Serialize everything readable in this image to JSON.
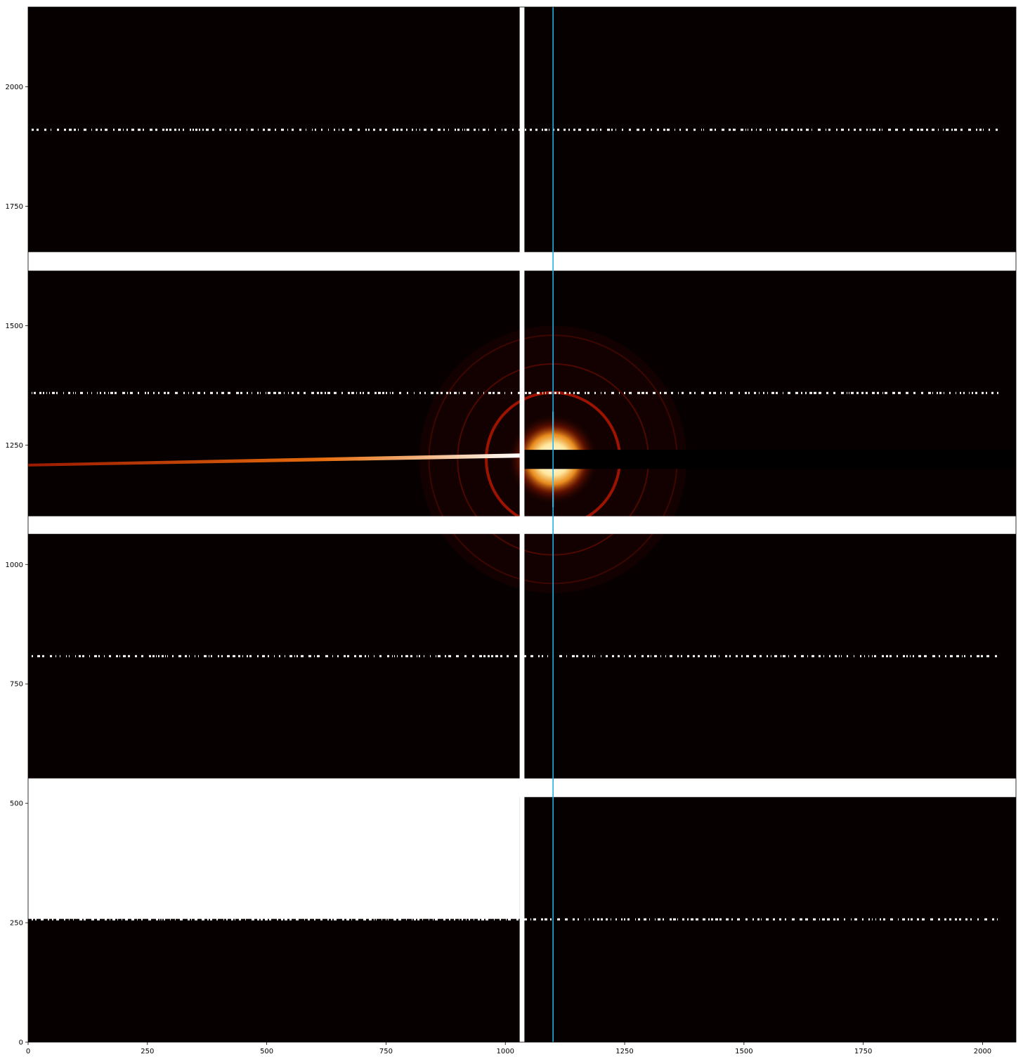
{
  "chart_data": {
    "type": "heatmap",
    "title": "",
    "xlabel": "",
    "ylabel": "",
    "xlim": [
      0,
      2070
    ],
    "ylim": [
      0,
      2167
    ],
    "colormap": "afmhot",
    "x_ticks": [
      "0",
      "250",
      "500",
      "750",
      "1000",
      "1250",
      "1500",
      "1750",
      "2000"
    ],
    "y_ticks": [
      "0",
      "250",
      "500",
      "750",
      "1000",
      "1250",
      "1500",
      "1750",
      "2000"
    ],
    "x_tick_values": [
      0,
      250,
      500,
      750,
      1000,
      1250,
      1500,
      1750,
      2000
    ],
    "y_tick_values": [
      0,
      250,
      500,
      750,
      1000,
      1250,
      1500,
      1750,
      2000
    ],
    "gap_color": "#ffffff",
    "vertical_gap": [
      1030,
      1040
    ],
    "horizontal_gaps": [
      [
        1615,
        1654
      ],
      [
        1064,
        1101
      ],
      [
        513,
        552
      ]
    ],
    "masked_block": {
      "x": [
        0,
        1030
      ],
      "y": [
        258,
        552
      ]
    },
    "beam_center": [
      1100,
      1220
    ],
    "rings": [
      {
        "radius": 140,
        "strength": 0.8
      },
      {
        "radius": 200,
        "strength": 0.35
      },
      {
        "radius": 260,
        "strength": 0.25
      }
    ],
    "streak": {
      "from": [
        0,
        1208
      ],
      "to": [
        1030,
        1228
      ]
    },
    "beamstop_band": {
      "x": [
        1040,
        2070
      ],
      "y": [
        1200,
        1240
      ]
    },
    "hot_pixel_rows": [
      1910,
      1359,
      808,
      257
    ],
    "vertical_line": {
      "x": 1100,
      "color": "#1fb0e8"
    }
  }
}
